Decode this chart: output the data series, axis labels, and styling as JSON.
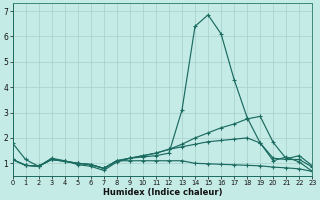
{
  "xlabel": "Humidex (Indice chaleur)",
  "bg_color": "#c5ebe6",
  "grid_color": "#a8cfc8",
  "line_color": "#1a6b60",
  "xlim": [
    0,
    23
  ],
  "ylim": [
    0.5,
    7.3
  ],
  "yticks": [
    1,
    2,
    3,
    4,
    5,
    6,
    7
  ],
  "xticks": [
    0,
    1,
    2,
    3,
    4,
    5,
    6,
    7,
    8,
    9,
    10,
    11,
    12,
    13,
    14,
    15,
    16,
    17,
    18,
    19,
    20,
    21,
    22,
    23
  ],
  "series": [
    [
      1.8,
      1.15,
      0.88,
      1.2,
      1.1,
      0.95,
      0.88,
      0.72,
      1.05,
      1.2,
      1.25,
      1.3,
      1.4,
      3.1,
      6.4,
      6.85,
      6.1,
      4.3,
      2.8,
      1.8,
      1.1,
      1.25,
      1.05,
      0.68
    ],
    [
      1.15,
      0.92,
      0.88,
      1.15,
      1.08,
      1.0,
      0.95,
      0.8,
      1.1,
      1.2,
      1.3,
      1.4,
      1.55,
      1.75,
      2.0,
      2.2,
      2.4,
      2.55,
      2.75,
      2.85,
      1.82,
      1.18,
      1.3,
      0.9
    ],
    [
      1.15,
      0.92,
      0.88,
      1.15,
      1.08,
      1.0,
      0.95,
      0.8,
      1.1,
      1.2,
      1.3,
      1.4,
      1.55,
      1.65,
      1.75,
      1.85,
      1.9,
      1.95,
      2.0,
      1.8,
      1.2,
      1.15,
      1.15,
      0.85
    ],
    [
      1.15,
      0.92,
      0.88,
      1.15,
      1.08,
      1.0,
      0.95,
      0.8,
      1.1,
      1.1,
      1.1,
      1.1,
      1.1,
      1.1,
      1.0,
      0.98,
      0.96,
      0.94,
      0.92,
      0.9,
      0.85,
      0.82,
      0.78,
      0.68
    ]
  ]
}
